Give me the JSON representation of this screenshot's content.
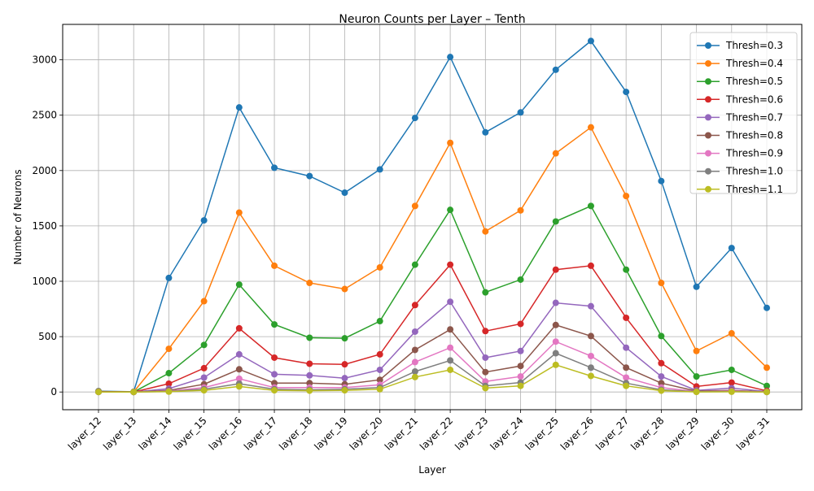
{
  "chart_data": {
    "type": "line",
    "title": "Neuron Counts per Layer – Tenth",
    "xlabel": "Layer",
    "ylabel": "Number of Neurons",
    "ylim": [
      -160,
      3320
    ],
    "yticks": [
      0,
      500,
      1000,
      1500,
      2000,
      2500,
      3000
    ],
    "grid": true,
    "legend_position": "upper right",
    "categories": [
      "layer_12",
      "layer_13",
      "layer_14",
      "layer_15",
      "layer_16",
      "layer_17",
      "layer_18",
      "layer_19",
      "layer_20",
      "layer_21",
      "layer_22",
      "layer_23",
      "layer_24",
      "layer_25",
      "layer_26",
      "layer_27",
      "layer_28",
      "layer_29",
      "layer_30",
      "layer_31"
    ],
    "series": [
      {
        "name": "Thresh=0.3",
        "color": "#1f77b4",
        "values": [
          8,
          2,
          1030,
          1550,
          2570,
          2025,
          1950,
          1800,
          2010,
          2475,
          3025,
          2345,
          2525,
          2910,
          3170,
          2710,
          1905,
          950,
          1300,
          760
        ]
      },
      {
        "name": "Thresh=0.4",
        "color": "#ff7f0e",
        "values": [
          5,
          1,
          390,
          820,
          1620,
          1140,
          985,
          930,
          1125,
          1680,
          2250,
          1450,
          1640,
          2155,
          2390,
          1770,
          985,
          370,
          530,
          220
        ]
      },
      {
        "name": "Thresh=0.5",
        "color": "#2ca02c",
        "values": [
          3,
          0,
          170,
          425,
          970,
          610,
          490,
          485,
          640,
          1150,
          1645,
          900,
          1015,
          1540,
          1680,
          1105,
          505,
          140,
          200,
          55
        ]
      },
      {
        "name": "Thresh=0.6",
        "color": "#d62728",
        "values": [
          2,
          0,
          75,
          215,
          575,
          310,
          255,
          250,
          340,
          785,
          1150,
          550,
          615,
          1105,
          1140,
          670,
          260,
          50,
          85,
          10
        ]
      },
      {
        "name": "Thresh=0.7",
        "color": "#9467bd",
        "values": [
          1,
          0,
          30,
          130,
          340,
          160,
          150,
          125,
          200,
          545,
          815,
          310,
          370,
          805,
          775,
          400,
          140,
          15,
          35,
          3
        ]
      },
      {
        "name": "Thresh=0.8",
        "color": "#8c564b",
        "values": [
          1,
          0,
          15,
          70,
          205,
          80,
          80,
          70,
          110,
          380,
          565,
          180,
          235,
          605,
          505,
          220,
          80,
          8,
          15,
          1
        ]
      },
      {
        "name": "Thresh=0.9",
        "color": "#e377c2",
        "values": [
          0,
          0,
          8,
          40,
          120,
          40,
          40,
          40,
          65,
          270,
          400,
          95,
          140,
          455,
          325,
          130,
          40,
          4,
          8,
          0
        ]
      },
      {
        "name": "Thresh=1.0",
        "color": "#7f7f7f",
        "values": [
          0,
          0,
          5,
          25,
          75,
          25,
          20,
          25,
          40,
          185,
          285,
          55,
          85,
          350,
          220,
          80,
          20,
          2,
          4,
          0
        ]
      },
      {
        "name": "Thresh=1.1",
        "color": "#bcbd22",
        "values": [
          0,
          0,
          3,
          15,
          50,
          15,
          12,
          15,
          25,
          135,
          200,
          35,
          55,
          245,
          145,
          55,
          12,
          1,
          2,
          0
        ]
      }
    ]
  }
}
